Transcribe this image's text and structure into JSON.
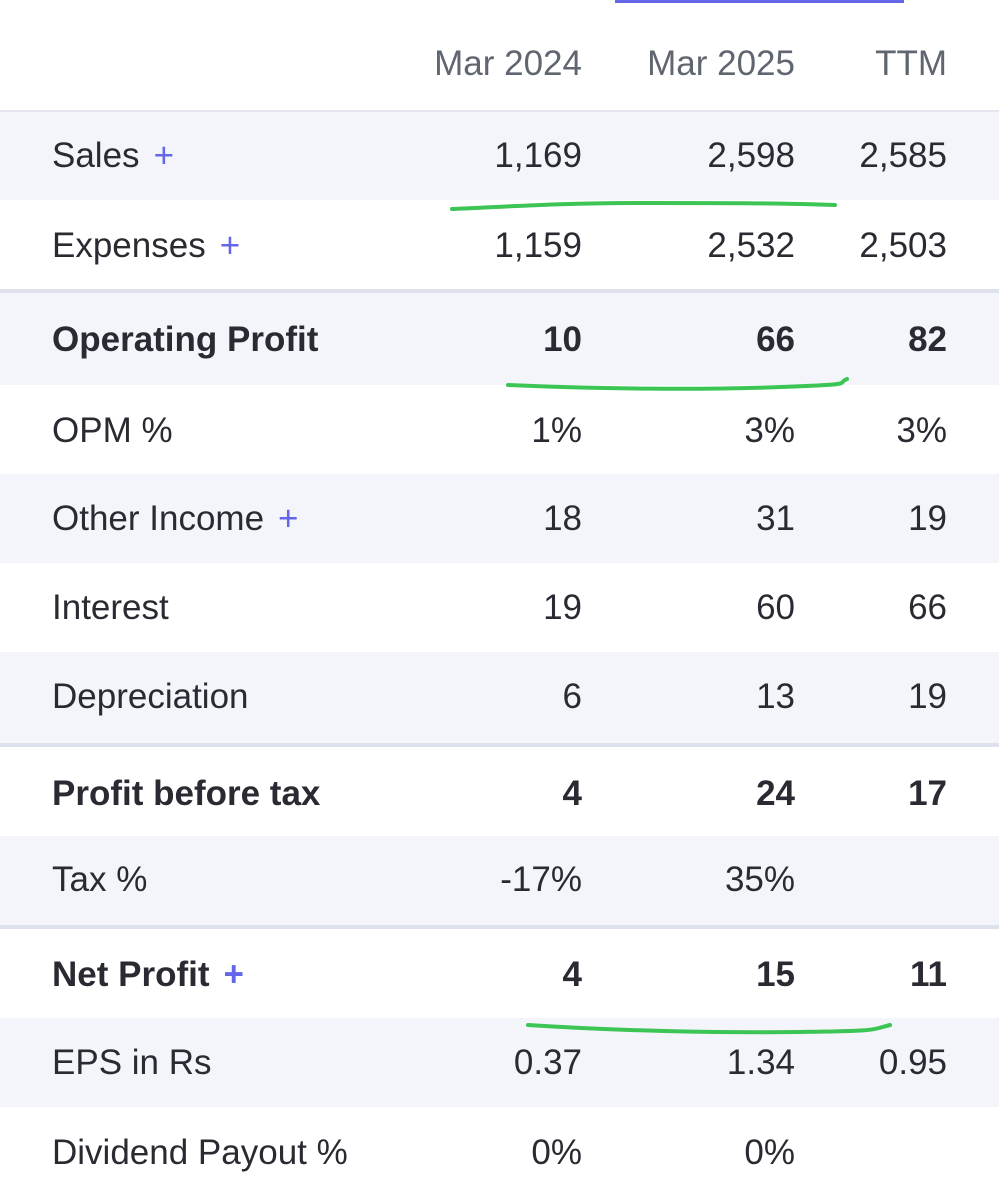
{
  "columns": [
    "Mar 2024",
    "Mar 2025",
    "TTM"
  ],
  "rows": [
    {
      "label": "Sales",
      "plus": "+",
      "values": [
        "1,169",
        "2,598",
        "2,585"
      ]
    },
    {
      "label": "Expenses",
      "plus": "+",
      "values": [
        "1,159",
        "2,532",
        "2,503"
      ]
    },
    {
      "label": "Operating Profit",
      "plus": "",
      "values": [
        "10",
        "66",
        "82"
      ]
    },
    {
      "label": "OPM %",
      "plus": "",
      "values": [
        "1%",
        "3%",
        "3%"
      ]
    },
    {
      "label": "Other Income",
      "plus": "+",
      "values": [
        "18",
        "31",
        "19"
      ]
    },
    {
      "label": "Interest",
      "plus": "",
      "values": [
        "19",
        "60",
        "66"
      ]
    },
    {
      "label": "Depreciation",
      "plus": "",
      "values": [
        "6",
        "13",
        "19"
      ]
    },
    {
      "label": "Profit before tax",
      "plus": "",
      "values": [
        "4",
        "24",
        "17"
      ]
    },
    {
      "label": "Tax %",
      "plus": "",
      "values": [
        "-17%",
        "35%",
        ""
      ]
    },
    {
      "label": "Net Profit",
      "plus": "+",
      "values": [
        "4",
        "15",
        "11"
      ]
    },
    {
      "label": "EPS in Rs",
      "plus": "",
      "values": [
        "0.37",
        "1.34",
        "0.95"
      ]
    },
    {
      "label": "Dividend Payout %",
      "plus": "",
      "values": [
        "0%",
        "0%",
        ""
      ]
    }
  ],
  "colors": {
    "accent": "#6466e9",
    "annotation": "#3cc454",
    "row_shade": "#f4f5fa",
    "text": "#2a2a33",
    "header_text": "#5f6670"
  }
}
